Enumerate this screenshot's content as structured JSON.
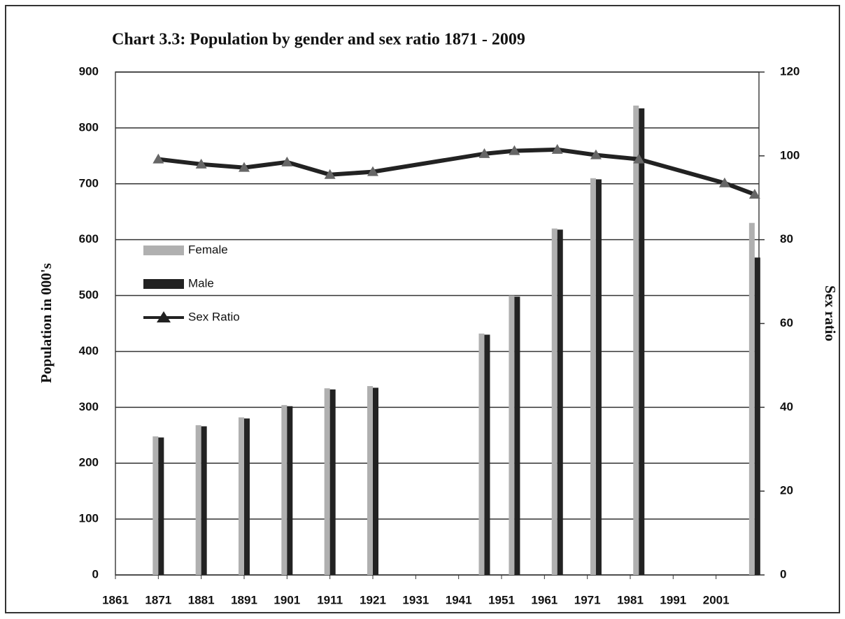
{
  "chart_data": {
    "type": "bar-line",
    "title": "Chart 3.3: Population by gender and sex ratio  1871 - 2009",
    "y_label": "Population in 000's",
    "y2_label": "Sex ratio",
    "x": [
      1871,
      1881,
      1891,
      1901,
      1911,
      1921,
      1947,
      1954,
      1964,
      1973,
      1983,
      2003,
      2010
    ],
    "series": [
      {
        "name": "Female",
        "color": "#b0b0b0",
        "kind": "bar",
        "values": [
          248,
          268,
          282,
          304,
          334,
          338,
          432,
          500,
          620,
          710,
          840,
          null,
          630
        ]
      },
      {
        "name": "Male",
        "color": "#222222",
        "kind": "bar",
        "values": [
          246,
          266,
          280,
          302,
          332,
          335,
          430,
          498,
          618,
          708,
          835,
          null,
          568
        ]
      },
      {
        "name": "Sex Ratio",
        "color": "#222222",
        "kind": "line",
        "axis": "y2",
        "values": [
          99.2,
          98,
          97.2,
          98.5,
          95.5,
          96.2,
          100.5,
          101.2,
          101.5,
          100.2,
          99.2,
          93.5,
          90.8
        ]
      }
    ],
    "xlim": [
      1861,
      2011
    ],
    "xticks": [
      1861,
      1871,
      1881,
      1891,
      1901,
      1911,
      1921,
      1931,
      1941,
      1951,
      1961,
      1971,
      1981,
      1991,
      2001
    ],
    "ylim": [
      0,
      900
    ],
    "yticks": [
      0,
      100,
      200,
      300,
      400,
      500,
      600,
      700,
      800,
      900
    ],
    "y2lim": [
      0,
      120
    ],
    "y2ticks": [
      0,
      20,
      40,
      60,
      80,
      100,
      120
    ],
    "grid": true,
    "legend": "left"
  }
}
